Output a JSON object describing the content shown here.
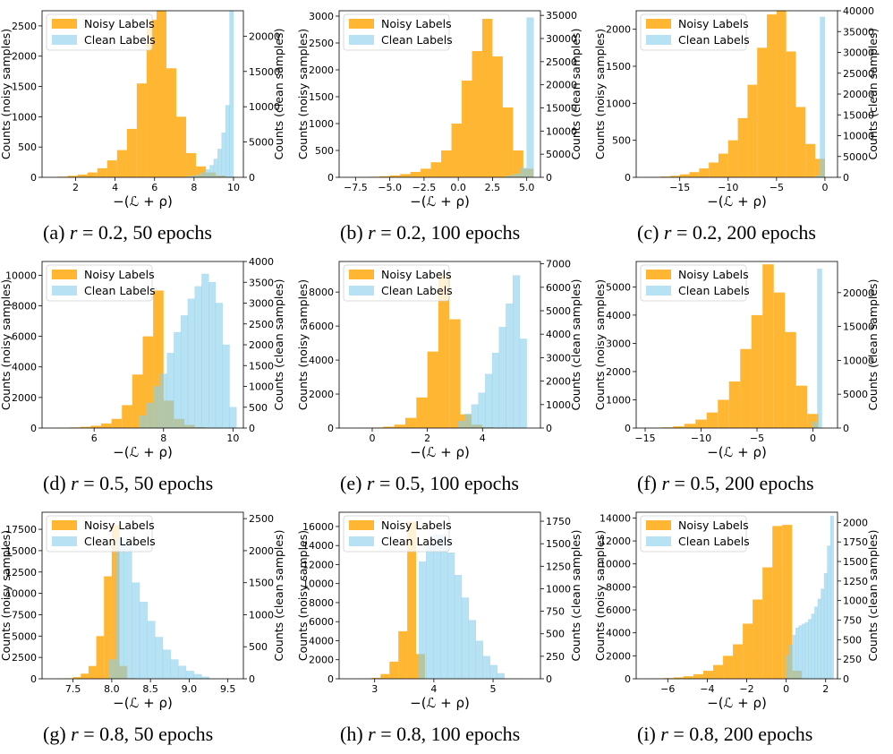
{
  "figure": {
    "legend_noisy": "Noisy Labels",
    "legend_clean": "Clean Labels",
    "ylabel_left": "Counts (noisy samples)",
    "ylabel_right": "Counts (clean samples)",
    "xlabel": "−(ℒ + ρ)",
    "colors": {
      "noisy": "#ffa500",
      "clean": "#87ceeb",
      "overlap": "#b3ab6a"
    }
  },
  "chart_data": [
    {
      "type": "bar",
      "id": "a",
      "caption_prefix": "(a) ",
      "caption_var": "r",
      "caption_rest": " = 0.2, 50 epochs",
      "xlim": [
        0.3,
        10.5
      ],
      "xticks": [
        2,
        4,
        6,
        8,
        10
      ],
      "xtick_labels": [
        "2",
        "4",
        "6",
        "8",
        "10"
      ],
      "ylim_left": [
        0,
        2750
      ],
      "yticks_left": [
        0,
        500,
        1000,
        1500,
        2000,
        2500
      ],
      "yticks_left_labels": [
        "0",
        "500",
        "1000",
        "1500",
        "2000",
        "2500"
      ],
      "ylim_right": [
        0,
        23600
      ],
      "yticks_right": [
        0,
        5000,
        10000,
        15000,
        20000
      ],
      "yticks_right_labels": [
        "0",
        "5000",
        "10000",
        "15000",
        "20000"
      ],
      "noisy": {
        "edges": [
          1.1,
          1.6,
          2.1,
          2.6,
          3.1,
          3.6,
          4.1,
          4.6,
          5.1,
          5.6,
          6.1,
          6.6,
          7.1,
          7.6,
          8.1,
          8.6,
          9.1,
          9.6,
          10.1
        ],
        "counts": [
          10,
          25,
          45,
          80,
          150,
          280,
          450,
          800,
          1550,
          2600,
          2750,
          1800,
          1000,
          400,
          180,
          80,
          30,
          10
        ]
      },
      "clean": {
        "edges": [
          7.6,
          7.8,
          8.0,
          8.2,
          8.4,
          8.6,
          8.8,
          9.0,
          9.2,
          9.4,
          9.6,
          9.8,
          10.0
        ],
        "counts": [
          80,
          150,
          250,
          450,
          700,
          1100,
          1700,
          2600,
          4000,
          6300,
          10200,
          23600
        ]
      }
    },
    {
      "type": "bar",
      "id": "b",
      "caption_prefix": "(b) ",
      "caption_var": "r",
      "caption_rest": " = 0.2, 100 epochs",
      "xlim": [
        -8.7,
        6.0
      ],
      "xticks": [
        -7.5,
        -5.0,
        -2.5,
        0.0,
        2.5,
        5.0
      ],
      "xtick_labels": [
        "−7.5",
        "−5.0",
        "−2.5",
        "0.0",
        "2.5",
        "5.0"
      ],
      "ylim_left": [
        0,
        3100
      ],
      "yticks_left": [
        0,
        500,
        1000,
        1500,
        2000,
        2500,
        3000
      ],
      "yticks_left_labels": [
        "0",
        "500",
        "1000",
        "1500",
        "2000",
        "2500",
        "3000"
      ],
      "ylim_right": [
        0,
        36000
      ],
      "yticks_right": [
        0,
        5000,
        10000,
        15000,
        20000,
        25000,
        30000,
        35000
      ],
      "yticks_right_labels": [
        "0",
        "5000",
        "10000",
        "15000",
        "20000",
        "25000",
        "30000",
        "35000"
      ],
      "noisy": {
        "edges": [
          -8.0,
          -7.25,
          -6.5,
          -5.75,
          -5.0,
          -4.25,
          -3.5,
          -2.75,
          -2.0,
          -1.25,
          -0.5,
          0.25,
          1.0,
          1.75,
          2.5,
          3.25,
          4.0,
          4.75,
          5.5
        ],
        "counts": [
          3,
          5,
          10,
          20,
          35,
          60,
          100,
          160,
          280,
          500,
          1000,
          1800,
          2350,
          2950,
          2250,
          1300,
          500,
          160
        ]
      },
      "clean": {
        "edges": [
          3.5,
          4.0,
          4.5,
          5.0,
          5.5
        ],
        "counts": [
          300,
          700,
          2000,
          34500
        ]
      }
    },
    {
      "type": "bar",
      "id": "c",
      "caption_prefix": "(c) ",
      "caption_var": "r",
      "caption_rest": " = 0.2, 200 epochs",
      "xlim": [
        -19.5,
        1.3
      ],
      "xticks": [
        -15,
        -10,
        -5,
        0
      ],
      "xtick_labels": [
        "−15",
        "−10",
        "−5",
        "0"
      ],
      "ylim_left": [
        0,
        2250
      ],
      "yticks_left": [
        0,
        500,
        1000,
        1500,
        2000
      ],
      "yticks_left_labels": [
        "0",
        "500",
        "1000",
        "1500",
        "2000"
      ],
      "ylim_right": [
        0,
        40000
      ],
      "yticks_right": [
        0,
        5000,
        10000,
        15000,
        20000,
        25000,
        30000,
        35000,
        40000
      ],
      "yticks_right_labels": [
        "0",
        "5000",
        "10000",
        "15000",
        "20000",
        "25000",
        "30000",
        "35000",
        "40000"
      ],
      "noisy": {
        "edges": [
          -18.0,
          -17.0,
          -16.0,
          -15.0,
          -14.0,
          -13.0,
          -12.0,
          -11.0,
          -10.0,
          -9.0,
          -8.0,
          -7.0,
          -6.0,
          -5.0,
          -4.0,
          -3.0,
          -2.0,
          -1.0,
          0.0
        ],
        "counts": [
          5,
          10,
          20,
          40,
          70,
          120,
          200,
          320,
          500,
          800,
          1250,
          1750,
          2200,
          2300,
          1700,
          950,
          450,
          250
        ]
      },
      "clean": {
        "edges": [
          -1.0,
          -0.5,
          0.0
        ],
        "counts": [
          400,
          38500
        ]
      }
    },
    {
      "type": "bar",
      "id": "d",
      "caption_prefix": "(d) ",
      "caption_var": "r",
      "caption_rest": " = 0.5, 50 epochs",
      "xlim": [
        4.5,
        10.3
      ],
      "xticks": [
        6,
        8,
        10
      ],
      "xtick_labels": [
        "6",
        "8",
        "10"
      ],
      "ylim_left": [
        0,
        10900
      ],
      "yticks_left": [
        0,
        2000,
        4000,
        6000,
        8000,
        10000
      ],
      "yticks_left_labels": [
        "0",
        "2000",
        "4000",
        "6000",
        "8000",
        "10000"
      ],
      "ylim_right": [
        0,
        4000
      ],
      "yticks_right": [
        0,
        500,
        1000,
        1500,
        2000,
        2500,
        3000,
        3500,
        4000
      ],
      "yticks_right_labels": [
        "0",
        "500",
        "1000",
        "1500",
        "2000",
        "2500",
        "3000",
        "3500",
        "4000"
      ],
      "noisy": {
        "edges": [
          5.0,
          5.3,
          5.6,
          5.9,
          6.2,
          6.5,
          6.8,
          7.1,
          7.4,
          7.7,
          8.0,
          8.3,
          8.6,
          8.9,
          9.2,
          9.5
        ],
        "counts": [
          20,
          40,
          80,
          150,
          300,
          600,
          1500,
          3500,
          6000,
          9000,
          1800,
          600,
          200,
          60,
          15
        ]
      },
      "clean": {
        "edges": [
          7.3,
          7.5,
          7.7,
          7.9,
          8.1,
          8.3,
          8.5,
          8.7,
          8.9,
          9.1,
          9.3,
          9.5,
          9.7,
          9.9,
          10.1
        ],
        "counts": [
          300,
          600,
          1000,
          1300,
          1800,
          2300,
          2700,
          3100,
          3400,
          3700,
          3500,
          3000,
          2000,
          500
        ]
      }
    },
    {
      "type": "bar",
      "id": "e",
      "caption_prefix": "(e) ",
      "caption_var": "r",
      "caption_rest": " = 0.5, 100 epochs",
      "xlim": [
        -1.2,
        6.1
      ],
      "xticks": [
        0,
        2,
        4
      ],
      "xtick_labels": [
        "0",
        "2",
        "4"
      ],
      "ylim_left": [
        0,
        9800
      ],
      "yticks_left": [
        0,
        2000,
        4000,
        6000,
        8000
      ],
      "yticks_left_labels": [
        "0",
        "2000",
        "4000",
        "6000",
        "8000"
      ],
      "ylim_right": [
        0,
        7100
      ],
      "yticks_right": [
        0,
        1000,
        2000,
        3000,
        4000,
        5000,
        6000,
        7000
      ],
      "yticks_right_labels": [
        "0",
        "1000",
        "2000",
        "3000",
        "4000",
        "5000",
        "6000",
        "7000"
      ],
      "noisy": {
        "edges": [
          -0.4,
          0.0,
          0.4,
          0.8,
          1.2,
          1.6,
          2.0,
          2.4,
          2.8,
          3.2,
          3.6,
          4.0,
          4.4
        ],
        "counts": [
          10,
          30,
          80,
          200,
          600,
          1800,
          4500,
          9000,
          6400,
          800,
          200,
          50
        ]
      },
      "clean": {
        "edges": [
          3.1,
          3.35,
          3.6,
          3.85,
          4.1,
          4.35,
          4.6,
          4.85,
          5.1,
          5.35,
          5.6
        ],
        "counts": [
          300,
          600,
          1000,
          1500,
          2300,
          3200,
          4300,
          5300,
          6500,
          3800
        ]
      }
    },
    {
      "type": "bar",
      "id": "f",
      "caption_prefix": "(f) ",
      "caption_var": "r",
      "caption_rest": " = 0.5, 200 epochs",
      "xlim": [
        -15.8,
        2.2
      ],
      "xticks": [
        -15,
        -10,
        -5,
        0
      ],
      "xtick_labels": [
        "−15",
        "−10",
        "−5",
        "0"
      ],
      "ylim_left": [
        0,
        5900
      ],
      "yticks_left": [
        0,
        1000,
        2000,
        3000,
        4000,
        5000
      ],
      "yticks_left_labels": [
        "0",
        "1000",
        "2000",
        "3000",
        "4000",
        "5000"
      ],
      "ylim_right": [
        0,
        24600
      ],
      "yticks_right": [
        0,
        5000,
        10000,
        15000,
        20000
      ],
      "yticks_right_labels": [
        "0",
        "5000",
        "10000",
        "15000",
        "20000"
      ],
      "noisy": {
        "edges": [
          -14.5,
          -13.5,
          -12.5,
          -11.5,
          -10.5,
          -9.5,
          -8.5,
          -7.5,
          -6.5,
          -5.5,
          -4.5,
          -3.5,
          -2.5,
          -1.5,
          -0.5,
          0.5
        ],
        "counts": [
          10,
          25,
          60,
          150,
          300,
          550,
          1000,
          1650,
          2800,
          4000,
          5800,
          4800,
          3400,
          1500,
          500
        ]
      },
      "clean": {
        "edges": [
          0.0,
          0.4,
          0.8
        ],
        "counts": [
          900,
          23500
        ]
      }
    },
    {
      "type": "bar",
      "id": "g",
      "caption_prefix": "(g) ",
      "caption_var": "r",
      "caption_rest": " = 0.8, 50 epochs",
      "xlim": [
        7.1,
        9.7
      ],
      "xticks": [
        7.5,
        8.0,
        8.5,
        9.0,
        9.5
      ],
      "xtick_labels": [
        "7.5",
        "8.0",
        "8.5",
        "9.0",
        "9.5"
      ],
      "ylim_left": [
        0,
        19500
      ],
      "yticks_left": [
        0,
        2500,
        5000,
        7500,
        10000,
        12500,
        15000,
        17500
      ],
      "yticks_left_labels": [
        "0",
        "2500",
        "5000",
        "7500",
        "10000",
        "12500",
        "15000",
        "17500"
      ],
      "ylim_right": [
        0,
        2600
      ],
      "yticks_right": [
        0,
        500,
        1000,
        1500,
        2000,
        2500
      ],
      "yticks_right_labels": [
        "0",
        "500",
        "1000",
        "1500",
        "2000",
        "2500"
      ],
      "noisy": {
        "edges": [
          7.3,
          7.4,
          7.5,
          7.6,
          7.7,
          7.8,
          7.9,
          8.0,
          8.1,
          8.2,
          8.3
        ],
        "counts": [
          10,
          60,
          200,
          600,
          1500,
          5000,
          12000,
          18000,
          1500,
          80
        ]
      },
      "clean": {
        "edges": [
          7.96,
          8.06,
          8.16,
          8.26,
          8.36,
          8.46,
          8.56,
          8.66,
          8.76,
          8.86,
          8.96,
          9.06,
          9.16,
          9.26
        ],
        "counts": [
          300,
          2200,
          2150,
          1500,
          1200,
          900,
          650,
          450,
          300,
          200,
          120,
          70,
          30
        ]
      }
    },
    {
      "type": "bar",
      "id": "h",
      "caption_prefix": "(h) ",
      "caption_var": "r",
      "caption_rest": " = 0.8, 100 epochs",
      "xlim": [
        2.4,
        5.8
      ],
      "xticks": [
        3,
        4,
        5
      ],
      "xtick_labels": [
        "3",
        "4",
        "5"
      ],
      "ylim_left": [
        0,
        17500
      ],
      "yticks_left": [
        0,
        2000,
        4000,
        6000,
        8000,
        10000,
        12000,
        14000,
        16000
      ],
      "yticks_left_labels": [
        "0",
        "2000",
        "4000",
        "6000",
        "8000",
        "10000",
        "12000",
        "14000",
        "16000"
      ],
      "ylim_right": [
        0,
        1850
      ],
      "yticks_right": [
        0,
        250,
        500,
        750,
        1000,
        1250,
        1500,
        1750
      ],
      "yticks_right_labels": [
        "0",
        "250",
        "500",
        "750",
        "1000",
        "1250",
        "1500",
        "1750"
      ],
      "noisy": {
        "edges": [
          2.8,
          2.95,
          3.1,
          3.25,
          3.4,
          3.55,
          3.7,
          3.85
        ],
        "counts": [
          30,
          100,
          500,
          1800,
          5000,
          16500,
          2600
        ]
      },
      "clean": {
        "edges": [
          3.75,
          3.87,
          3.99,
          4.11,
          4.23,
          4.35,
          4.47,
          4.59,
          4.71,
          4.83,
          4.95,
          5.07,
          5.19
        ],
        "counts": [
          1300,
          1500,
          1600,
          1600,
          1400,
          1150,
          900,
          650,
          420,
          250,
          150,
          60
        ]
      }
    },
    {
      "type": "bar",
      "id": "i",
      "caption_prefix": "(i) ",
      "caption_var": "r",
      "caption_rest": " = 0.8, 200 epochs",
      "xlim": [
        -7.6,
        2.6
      ],
      "xticks": [
        -6,
        -4,
        -2,
        0,
        2
      ],
      "xtick_labels": [
        "−6",
        "−4",
        "−2",
        "0",
        "2"
      ],
      "ylim_left": [
        0,
        14500
      ],
      "yticks_left": [
        0,
        2000,
        4000,
        6000,
        8000,
        10000,
        12000,
        14000
      ],
      "yticks_left_labels": [
        "0",
        "2000",
        "4000",
        "6000",
        "8000",
        "10000",
        "12000",
        "14000"
      ],
      "ylim_right": [
        0,
        2130
      ],
      "yticks_right": [
        0,
        250,
        500,
        750,
        1000,
        1250,
        1500,
        1750,
        2000
      ],
      "yticks_right_labels": [
        "0",
        "250",
        "500",
        "750",
        "1000",
        "1250",
        "1500",
        "1750",
        "2000"
      ],
      "noisy": {
        "edges": [
          -6.7,
          -6.2,
          -5.7,
          -5.2,
          -4.7,
          -4.2,
          -3.7,
          -3.2,
          -2.7,
          -2.2,
          -1.7,
          -1.2,
          -0.7,
          -0.2,
          0.3,
          0.8
        ],
        "counts": [
          30,
          60,
          120,
          220,
          400,
          700,
          1200,
          2000,
          3000,
          4800,
          6900,
          9700,
          13300,
          13400,
          700
        ]
      },
      "clean": {
        "edges": [
          0.0,
          0.16,
          0.32,
          0.48,
          0.64,
          0.8,
          0.96,
          1.12,
          1.28,
          1.44,
          1.6,
          1.76,
          1.92,
          2.08,
          2.24,
          2.4
        ],
        "counts": [
          300,
          430,
          560,
          650,
          680,
          700,
          720,
          760,
          830,
          920,
          1020,
          1150,
          1350,
          1700,
          2080
        ]
      }
    }
  ]
}
